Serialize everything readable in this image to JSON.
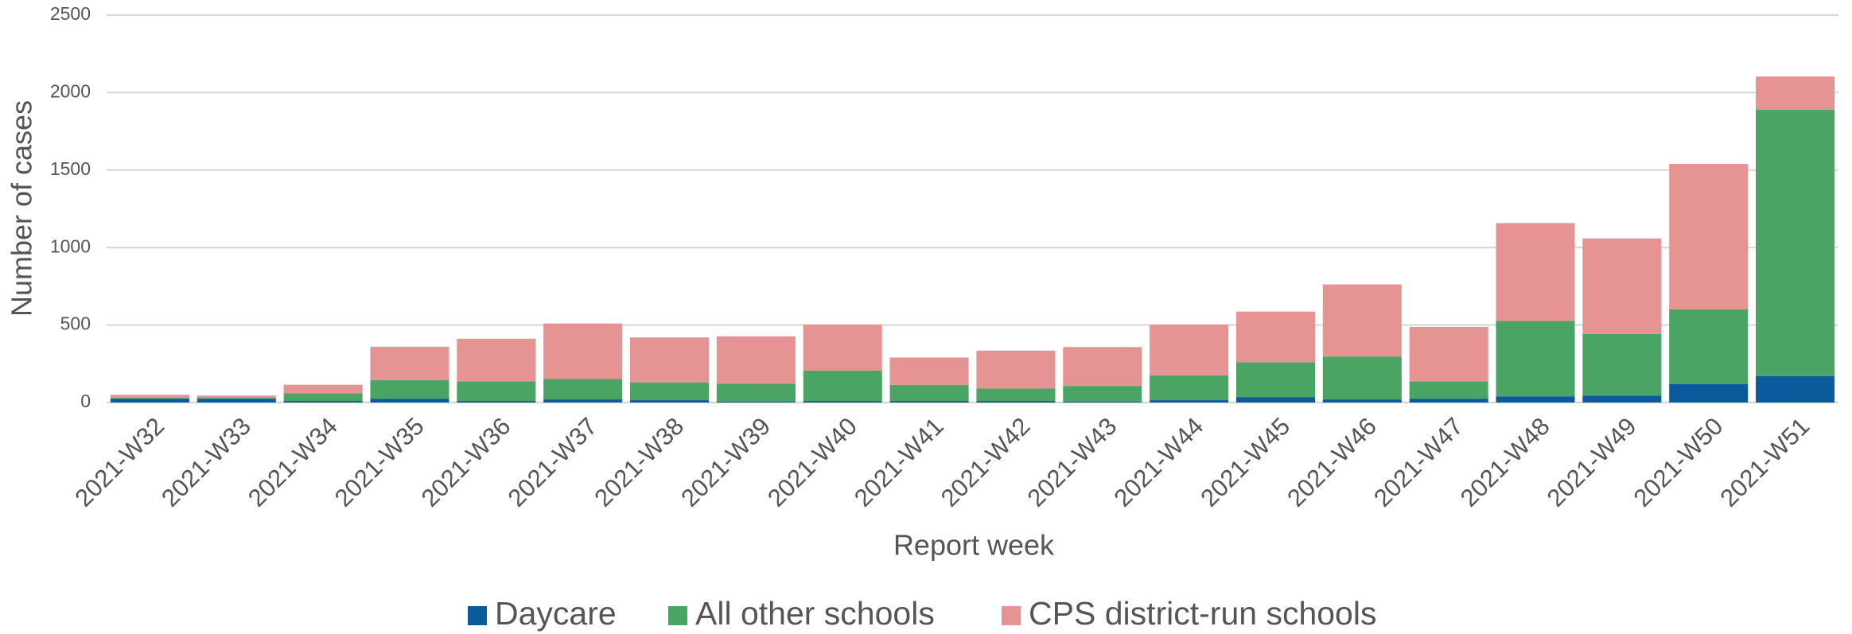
{
  "chart_data": {
    "type": "stacked_bar",
    "x_label": "Report week",
    "y_label": "Number of cases",
    "categories": [
      "2021-W32",
      "2021-W33",
      "2021-W34",
      "2021-W35",
      "2021-W36",
      "2021-W37",
      "2021-W38",
      "2021-W39",
      "2021-W40",
      "2021-W41",
      "2021-W42",
      "2021-W43",
      "2021-W44",
      "2021-W45",
      "2021-W46",
      "2021-W47",
      "2021-W48",
      "2021-W49",
      "2021-W50",
      "2021-W51"
    ],
    "series": [
      {
        "name": "Daycare",
        "color": "#0b5a9c",
        "values": [
          25,
          25,
          10,
          25,
          10,
          20,
          15,
          5,
          10,
          10,
          10,
          5,
          15,
          35,
          20,
          25,
          40,
          45,
          120,
          170
        ]
      },
      {
        "name": "All other schools",
        "color": "#4aa564",
        "values": [
          5,
          5,
          50,
          120,
          127,
          132,
          115,
          117,
          196,
          104,
          81,
          102,
          160,
          224,
          277,
          112,
          486,
          397,
          482,
          1720
        ]
      },
      {
        "name": "CPS district-run schools",
        "color": "#e59393",
        "values": [
          20,
          15,
          55,
          215,
          275,
          358,
          290,
          305,
          297,
          176,
          244,
          251,
          328,
          328,
          465,
          351,
          632,
          617,
          938,
          214
        ]
      }
    ],
    "ylim": [
      0,
      2500
    ],
    "yticks": [
      0,
      500,
      1000,
      1500,
      2000,
      2500
    ],
    "grid": true,
    "legend": "bottom"
  }
}
